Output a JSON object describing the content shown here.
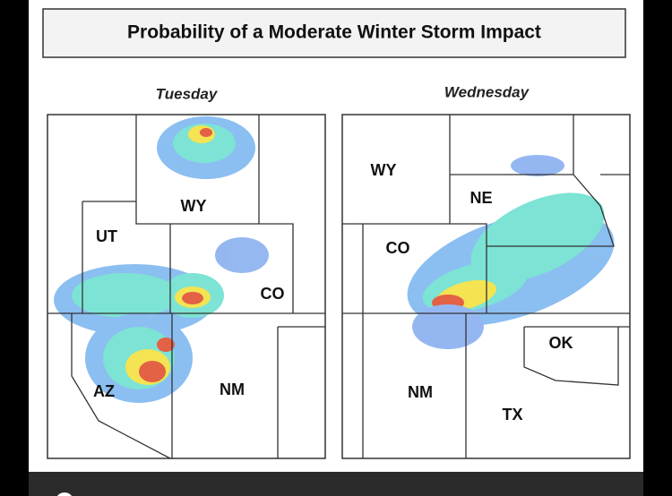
{
  "header": {
    "title": "Probability of a Moderate Winter Storm Impact"
  },
  "panels": [
    {
      "day": "Tuesday",
      "labels": [
        "WY",
        "UT",
        "CO",
        "AZ",
        "NM"
      ]
    },
    {
      "day": "Wednesday",
      "labels": [
        "WY",
        "NE",
        "CO",
        "OK",
        "NM",
        "TX"
      ]
    }
  ]
}
